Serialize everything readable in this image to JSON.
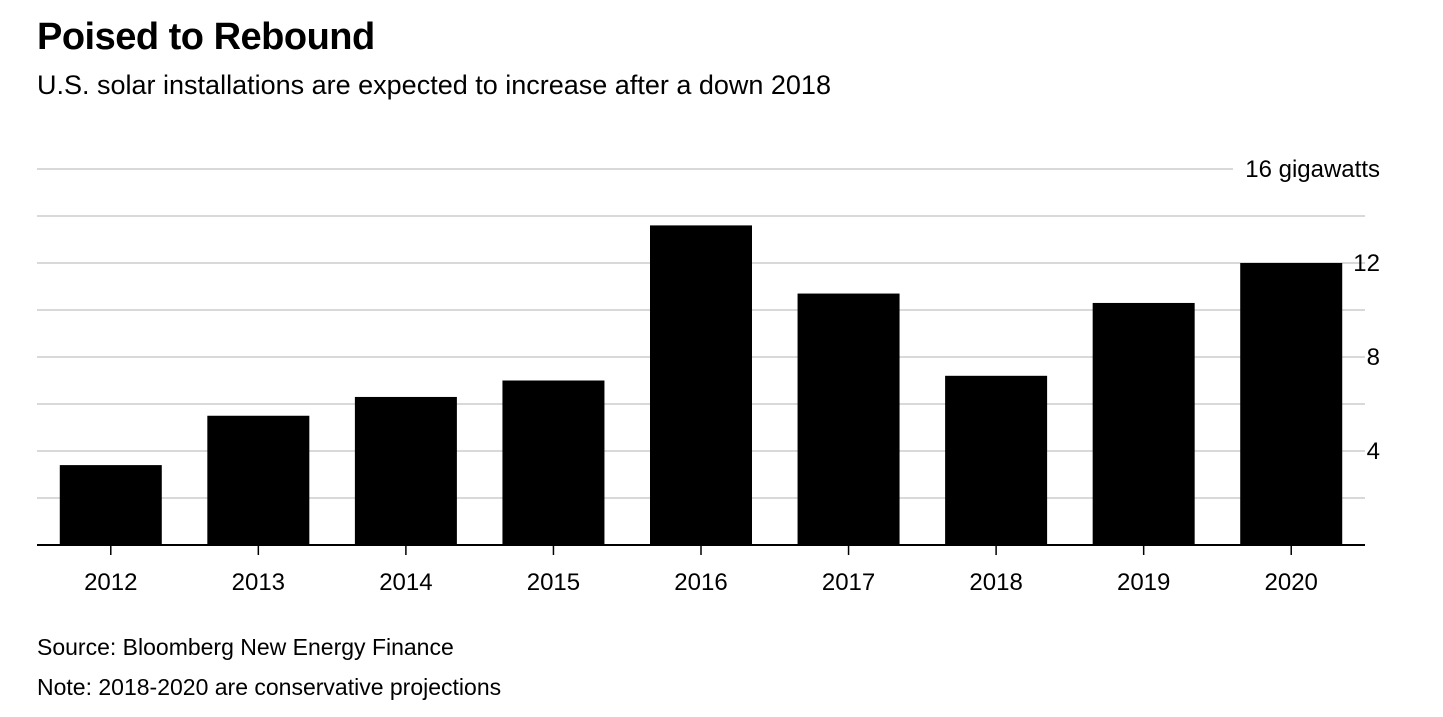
{
  "header": {
    "title": "Poised to Rebound",
    "subtitle": "U.S. solar installations are expected to increase after a down 2018"
  },
  "footer": {
    "source": "Source: Bloomberg New Energy Finance",
    "note": "Note: 2018-2020 are conservative projections"
  },
  "chart_data": {
    "type": "bar",
    "title": "Poised to Rebound",
    "subtitle": "U.S. solar installations are expected to increase after a down 2018",
    "categories": [
      "2012",
      "2013",
      "2014",
      "2015",
      "2016",
      "2017",
      "2018",
      "2019",
      "2020"
    ],
    "values": [
      3.4,
      5.5,
      6.3,
      7.0,
      13.6,
      10.7,
      7.2,
      10.3,
      12.0
    ],
    "ylim": [
      0,
      16
    ],
    "yticks": [
      4,
      8,
      12,
      16
    ],
    "ytick_labels": [
      "4",
      "8",
      "12",
      "16 gigawatts"
    ],
    "ylabel": "",
    "xlabel": "",
    "y_axis_side": "right",
    "grid": true,
    "bar_color": "#000000",
    "grid_color": "#d9d9d9"
  }
}
